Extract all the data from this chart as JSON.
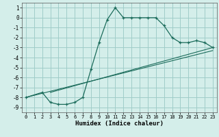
{
  "xlabel": "Humidex (Indice chaleur)",
  "bg_color": "#d4eeea",
  "grid_color": "#a0ccc8",
  "line_color": "#1a6b5a",
  "xlim": [
    -0.5,
    23.5
  ],
  "ylim": [
    -9.5,
    1.5
  ],
  "xticks": [
    0,
    1,
    2,
    3,
    4,
    5,
    6,
    7,
    8,
    9,
    10,
    11,
    12,
    13,
    14,
    15,
    16,
    17,
    18,
    19,
    20,
    21,
    22,
    23
  ],
  "yticks": [
    1,
    0,
    -1,
    -2,
    -3,
    -4,
    -5,
    -6,
    -7,
    -8,
    -9
  ],
  "main_x": [
    0,
    2,
    3,
    4,
    5,
    6,
    7,
    8,
    9,
    10,
    11,
    12,
    13,
    14,
    15,
    16,
    17,
    18,
    19,
    20,
    21,
    22,
    23
  ],
  "main_y": [
    -8.0,
    -7.5,
    -8.5,
    -8.7,
    -8.7,
    -8.5,
    -8.0,
    -5.2,
    -2.5,
    -0.2,
    1.0,
    0.0,
    0.0,
    0.0,
    0.0,
    0.0,
    -0.8,
    -2.0,
    -2.5,
    -2.5,
    -2.3,
    -2.5,
    -3.0
  ],
  "line2_x": [
    0,
    23
  ],
  "line2_y": [
    -8.0,
    -3.3
  ],
  "line3_x": [
    3,
    23
  ],
  "line3_y": [
    -7.5,
    -3.0
  ]
}
